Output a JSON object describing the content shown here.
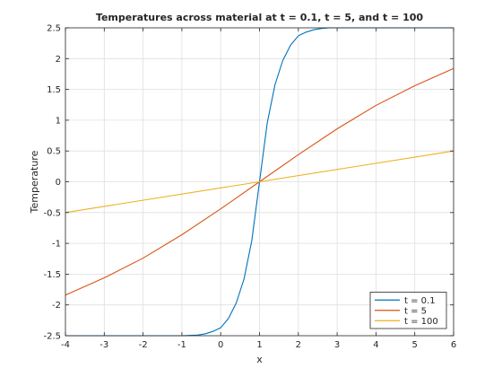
{
  "chart_data": {
    "type": "line",
    "title": "Temperatures across material at t = 0.1, t = 5, and t = 100",
    "xlabel": "x",
    "ylabel": "Temperature",
    "xlim": [
      -4,
      6
    ],
    "ylim": [
      -2.5,
      2.5
    ],
    "xticks": [
      "-4",
      "-3",
      "-2",
      "-1",
      "0",
      "1",
      "2",
      "3",
      "4",
      "5",
      "6"
    ],
    "yticks": [
      "-2.5",
      "-2",
      "-1.5",
      "-1",
      "-0.5",
      "0",
      "0.5",
      "1",
      "1.5",
      "2",
      "2.5"
    ],
    "grid": true,
    "legend_position": "bottom-right",
    "series": [
      {
        "name": "t = 0.1",
        "color": "#0072bd",
        "x": [
          -4,
          -1,
          -0.6,
          -0.4,
          -0.2,
          0,
          0.2,
          0.4,
          0.6,
          0.8,
          1,
          1.2,
          1.4,
          1.6,
          1.8,
          2,
          2.2,
          2.4,
          2.6,
          2.8,
          3,
          6
        ],
        "y": [
          -2.5,
          -2.5,
          -2.49,
          -2.47,
          -2.43,
          -2.37,
          -2.22,
          -1.97,
          -1.58,
          -0.96,
          0,
          0.96,
          1.58,
          1.97,
          2.22,
          2.37,
          2.43,
          2.47,
          2.49,
          2.5,
          2.5,
          2.5
        ]
      },
      {
        "name": "t = 5",
        "color": "#d95319",
        "x": [
          -4,
          -3,
          -2,
          -1,
          0,
          1,
          2,
          3,
          4,
          5,
          6
        ],
        "y": [
          -1.84,
          -1.56,
          -1.24,
          -0.86,
          -0.44,
          0,
          0.44,
          0.86,
          1.24,
          1.56,
          1.84
        ]
      },
      {
        "name": "t = 100",
        "color": "#edb120",
        "x": [
          -4,
          6
        ],
        "y": [
          -0.5,
          0.5
        ]
      }
    ]
  }
}
